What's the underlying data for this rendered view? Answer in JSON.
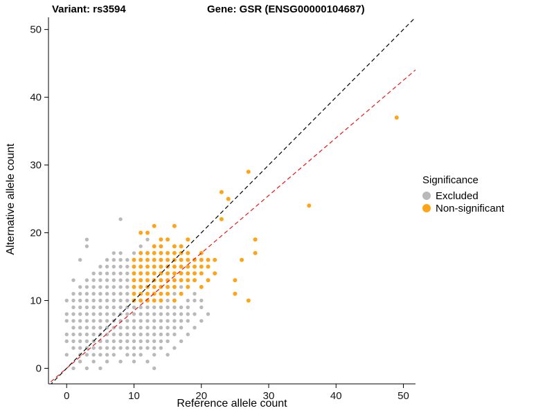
{
  "chart_data": {
    "type": "scatter",
    "titles": {
      "variant": "Variant: rs3594",
      "gene": "Gene: GSR (ENSG00000104687)"
    },
    "xlabel": "Reference allele count",
    "ylabel": "Alternative allele count",
    "xlim": [
      -2.7,
      51.8
    ],
    "ylim": [
      -2.3,
      51.8
    ],
    "xticks": [
      0,
      10,
      20,
      30,
      40,
      50
    ],
    "yticks": [
      0,
      10,
      20,
      30,
      40,
      50
    ],
    "grid": false,
    "legend": {
      "title": "Significance",
      "position": "right",
      "items": [
        {
          "label": "Excluded",
          "color": "#b9b9b9"
        },
        {
          "label": "Non-significant",
          "color": "#FFA317"
        }
      ]
    },
    "lines": [
      {
        "name": "identity-line",
        "slope": 1,
        "intercept": 0,
        "color": "#000000",
        "dashed": true
      },
      {
        "name": "regression-line",
        "slope": 0.85,
        "intercept": 0,
        "color": "#EE1111",
        "dashed": true
      }
    ],
    "series": [
      {
        "name": "Excluded",
        "color": "#b9b9b9",
        "size": 2.7,
        "points": [
          [
            0,
            2
          ],
          [
            0,
            4
          ],
          [
            0,
            5
          ],
          [
            0,
            7
          ],
          [
            0,
            8
          ],
          [
            0,
            10
          ],
          [
            1,
            0
          ],
          [
            1,
            3
          ],
          [
            1,
            4
          ],
          [
            1,
            5
          ],
          [
            1,
            6
          ],
          [
            1,
            7
          ],
          [
            1,
            8
          ],
          [
            1,
            9
          ],
          [
            1,
            10
          ],
          [
            1,
            11
          ],
          [
            1,
            13
          ],
          [
            2,
            1
          ],
          [
            2,
            2
          ],
          [
            2,
            3
          ],
          [
            2,
            4
          ],
          [
            2,
            5
          ],
          [
            2,
            6
          ],
          [
            2,
            7
          ],
          [
            2,
            8
          ],
          [
            2,
            9
          ],
          [
            2,
            10
          ],
          [
            2,
            11
          ],
          [
            2,
            12
          ],
          [
            2,
            16
          ],
          [
            3,
            0
          ],
          [
            3,
            2
          ],
          [
            3,
            3
          ],
          [
            3,
            4
          ],
          [
            3,
            5
          ],
          [
            3,
            6
          ],
          [
            3,
            7
          ],
          [
            3,
            8
          ],
          [
            3,
            9
          ],
          [
            3,
            10
          ],
          [
            3,
            11
          ],
          [
            3,
            12
          ],
          [
            3,
            13
          ],
          [
            3,
            18
          ],
          [
            3,
            19
          ],
          [
            4,
            1
          ],
          [
            4,
            2
          ],
          [
            4,
            3
          ],
          [
            4,
            4
          ],
          [
            4,
            5
          ],
          [
            4,
            6
          ],
          [
            4,
            7
          ],
          [
            4,
            8
          ],
          [
            4,
            9
          ],
          [
            4,
            10
          ],
          [
            4,
            11
          ],
          [
            4,
            12
          ],
          [
            4,
            13
          ],
          [
            4,
            14
          ],
          [
            5,
            0
          ],
          [
            5,
            2
          ],
          [
            5,
            3
          ],
          [
            5,
            4
          ],
          [
            5,
            5
          ],
          [
            5,
            6
          ],
          [
            5,
            7
          ],
          [
            5,
            8
          ],
          [
            5,
            9
          ],
          [
            5,
            10
          ],
          [
            5,
            11
          ],
          [
            5,
            12
          ],
          [
            5,
            13
          ],
          [
            5,
            14
          ],
          [
            5,
            15
          ],
          [
            6,
            1
          ],
          [
            6,
            2
          ],
          [
            6,
            3
          ],
          [
            6,
            4
          ],
          [
            6,
            5
          ],
          [
            6,
            6
          ],
          [
            6,
            7
          ],
          [
            6,
            8
          ],
          [
            6,
            9
          ],
          [
            6,
            10
          ],
          [
            6,
            11
          ],
          [
            6,
            12
          ],
          [
            6,
            13
          ],
          [
            6,
            14
          ],
          [
            6,
            15
          ],
          [
            6,
            16
          ],
          [
            7,
            2
          ],
          [
            7,
            3
          ],
          [
            7,
            4
          ],
          [
            7,
            5
          ],
          [
            7,
            6
          ],
          [
            7,
            7
          ],
          [
            7,
            8
          ],
          [
            7,
            9
          ],
          [
            7,
            10
          ],
          [
            7,
            11
          ],
          [
            7,
            12
          ],
          [
            7,
            13
          ],
          [
            7,
            14
          ],
          [
            7,
            15
          ],
          [
            7,
            16
          ],
          [
            7,
            17
          ],
          [
            8,
            1
          ],
          [
            8,
            3
          ],
          [
            8,
            4
          ],
          [
            8,
            5
          ],
          [
            8,
            6
          ],
          [
            8,
            7
          ],
          [
            8,
            8
          ],
          [
            8,
            9
          ],
          [
            8,
            10
          ],
          [
            8,
            11
          ],
          [
            8,
            12
          ],
          [
            8,
            13
          ],
          [
            8,
            14
          ],
          [
            8,
            15
          ],
          [
            8,
            16
          ],
          [
            8,
            17
          ],
          [
            8,
            22
          ],
          [
            9,
            2
          ],
          [
            9,
            3
          ],
          [
            9,
            4
          ],
          [
            9,
            5
          ],
          [
            9,
            6
          ],
          [
            9,
            7
          ],
          [
            9,
            8
          ],
          [
            9,
            9
          ],
          [
            9,
            10
          ],
          [
            9,
            11
          ],
          [
            9,
            12
          ],
          [
            9,
            13
          ],
          [
            9,
            14
          ],
          [
            9,
            15
          ],
          [
            9,
            16
          ],
          [
            10,
            1
          ],
          [
            10,
            2
          ],
          [
            10,
            3
          ],
          [
            10,
            4
          ],
          [
            10,
            5
          ],
          [
            10,
            6
          ],
          [
            10,
            7
          ],
          [
            10,
            8
          ],
          [
            10,
            9
          ],
          [
            10,
            17
          ],
          [
            11,
            2
          ],
          [
            11,
            3
          ],
          [
            11,
            4
          ],
          [
            11,
            5
          ],
          [
            11,
            6
          ],
          [
            11,
            7
          ],
          [
            11,
            8
          ],
          [
            11,
            9
          ],
          [
            11,
            18
          ],
          [
            12,
            1
          ],
          [
            12,
            3
          ],
          [
            12,
            4
          ],
          [
            12,
            5
          ],
          [
            12,
            6
          ],
          [
            12,
            7
          ],
          [
            12,
            8
          ],
          [
            12,
            9
          ],
          [
            12,
            19
          ],
          [
            13,
            0
          ],
          [
            13,
            2
          ],
          [
            13,
            3
          ],
          [
            13,
            4
          ],
          [
            13,
            5
          ],
          [
            13,
            6
          ],
          [
            13,
            7
          ],
          [
            13,
            8
          ],
          [
            13,
            9
          ],
          [
            14,
            3
          ],
          [
            14,
            4
          ],
          [
            14,
            5
          ],
          [
            14,
            6
          ],
          [
            14,
            7
          ],
          [
            14,
            8
          ],
          [
            14,
            9
          ],
          [
            14,
            10
          ],
          [
            15,
            2
          ],
          [
            15,
            4
          ],
          [
            15,
            5
          ],
          [
            15,
            6
          ],
          [
            15,
            7
          ],
          [
            15,
            8
          ],
          [
            15,
            9
          ],
          [
            15,
            10
          ],
          [
            16,
            3
          ],
          [
            16,
            5
          ],
          [
            16,
            6
          ],
          [
            16,
            7
          ],
          [
            16,
            8
          ],
          [
            16,
            9
          ],
          [
            16,
            10
          ],
          [
            16,
            11
          ],
          [
            17,
            4
          ],
          [
            17,
            6
          ],
          [
            17,
            7
          ],
          [
            17,
            8
          ],
          [
            17,
            9
          ],
          [
            17,
            12
          ],
          [
            18,
            5
          ],
          [
            18,
            7
          ],
          [
            18,
            8
          ],
          [
            18,
            9
          ],
          [
            18,
            10
          ],
          [
            18,
            16
          ],
          [
            19,
            6
          ],
          [
            19,
            8
          ],
          [
            19,
            10
          ],
          [
            19,
            11
          ],
          [
            20,
            7
          ],
          [
            20,
            9
          ],
          [
            20,
            10
          ],
          [
            20,
            12
          ],
          [
            21,
            8
          ],
          [
            21,
            13
          ]
        ]
      },
      {
        "name": "Non-significant",
        "color": "#FFA317",
        "size": 3,
        "points": [
          [
            10,
            10
          ],
          [
            10,
            11
          ],
          [
            10,
            12
          ],
          [
            10,
            13
          ],
          [
            10,
            14
          ],
          [
            10,
            15
          ],
          [
            10,
            16
          ],
          [
            11,
            10
          ],
          [
            11,
            11
          ],
          [
            11,
            12
          ],
          [
            11,
            13
          ],
          [
            11,
            14
          ],
          [
            11,
            15
          ],
          [
            11,
            16
          ],
          [
            11,
            17
          ],
          [
            11,
            20
          ],
          [
            12,
            10
          ],
          [
            12,
            11
          ],
          [
            12,
            12
          ],
          [
            12,
            13
          ],
          [
            12,
            14
          ],
          [
            12,
            15
          ],
          [
            12,
            16
          ],
          [
            12,
            17
          ],
          [
            12,
            20
          ],
          [
            13,
            10
          ],
          [
            13,
            11
          ],
          [
            13,
            12
          ],
          [
            13,
            13
          ],
          [
            13,
            14
          ],
          [
            13,
            15
          ],
          [
            13,
            16
          ],
          [
            13,
            17
          ],
          [
            13,
            18
          ],
          [
            13,
            21
          ],
          [
            14,
            10
          ],
          [
            14,
            11
          ],
          [
            14,
            12
          ],
          [
            14,
            13
          ],
          [
            14,
            14
          ],
          [
            14,
            15
          ],
          [
            14,
            16
          ],
          [
            14,
            17
          ],
          [
            14,
            18
          ],
          [
            14,
            19
          ],
          [
            15,
            11
          ],
          [
            15,
            12
          ],
          [
            15,
            13
          ],
          [
            15,
            14
          ],
          [
            15,
            15
          ],
          [
            15,
            16
          ],
          [
            15,
            17
          ],
          [
            15,
            19
          ],
          [
            16,
            10
          ],
          [
            16,
            12
          ],
          [
            16,
            13
          ],
          [
            16,
            14
          ],
          [
            16,
            15
          ],
          [
            16,
            16
          ],
          [
            16,
            17
          ],
          [
            16,
            18
          ],
          [
            16,
            21
          ],
          [
            17,
            11
          ],
          [
            17,
            13
          ],
          [
            17,
            14
          ],
          [
            17,
            15
          ],
          [
            17,
            16
          ],
          [
            17,
            17
          ],
          [
            17,
            18
          ],
          [
            18,
            12
          ],
          [
            18,
            13
          ],
          [
            18,
            14
          ],
          [
            18,
            15
          ],
          [
            18,
            16
          ],
          [
            18,
            17
          ],
          [
            18,
            19
          ],
          [
            19,
            13
          ],
          [
            19,
            14
          ],
          [
            19,
            15
          ],
          [
            19,
            16
          ],
          [
            20,
            12
          ],
          [
            20,
            14
          ],
          [
            20,
            15
          ],
          [
            20,
            16
          ],
          [
            20,
            17
          ],
          [
            21,
            13
          ],
          [
            21,
            15
          ],
          [
            21,
            16
          ],
          [
            22,
            14
          ],
          [
            22,
            16
          ],
          [
            23,
            22
          ],
          [
            23,
            26
          ],
          [
            24,
            25
          ],
          [
            25,
            11
          ],
          [
            25,
            13
          ],
          [
            26,
            16
          ],
          [
            27,
            10
          ],
          [
            27,
            29
          ],
          [
            28,
            17
          ],
          [
            28,
            19
          ],
          [
            36,
            24
          ],
          [
            49,
            37
          ]
        ]
      }
    ]
  }
}
